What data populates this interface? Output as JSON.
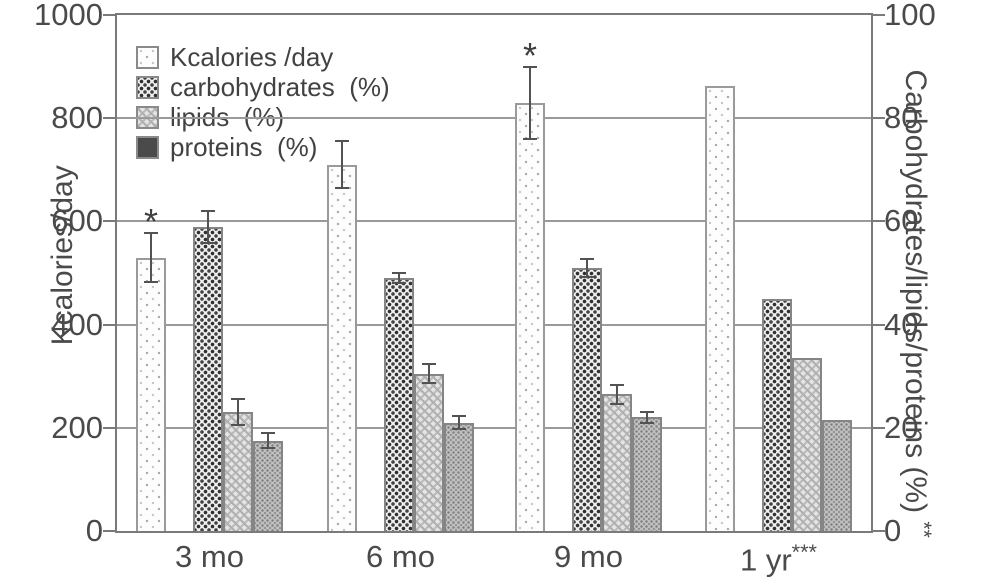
{
  "chart_data": {
    "type": "bar",
    "title": "",
    "categories": [
      "3 mo",
      "6 mo",
      "9 mo",
      "1 yr"
    ],
    "category_superscripts": [
      "",
      "",
      "",
      "***"
    ],
    "left_axis": {
      "label": "Kcalories/day",
      "ticks": [
        0,
        200,
        400,
        600,
        800,
        1000
      ],
      "range": [
        0,
        1000
      ]
    },
    "right_axis": {
      "label": "Carbohydrates/lipids/proteins (%) ",
      "suffix": "**",
      "ticks": [
        0,
        20,
        40,
        60,
        80,
        100
      ],
      "range": [
        0,
        100
      ]
    },
    "grid": "horizontal",
    "legend_position": "top-left-inside",
    "series": [
      {
        "name": "Kcalories /day",
        "axis": "left",
        "pattern": "kcal",
        "legend_swatch": "pattern",
        "values": [
          530,
          710,
          830,
          863
        ],
        "errors": [
          50,
          47,
          72,
          0
        ],
        "annotations": [
          "*",
          "",
          "*",
          ""
        ]
      },
      {
        "name": "carbohydrates  (%)",
        "axis": "right",
        "pattern": "carb",
        "legend_swatch": "pattern",
        "values": [
          59,
          49,
          51,
          45
        ],
        "errors": [
          3.3,
          1.2,
          2,
          0
        ],
        "annotations": [
          "",
          "",
          "",
          ""
        ]
      },
      {
        "name": "lipids  (%)",
        "axis": "right",
        "pattern": "lipids",
        "legend_swatch": "pattern",
        "values": [
          23,
          30.5,
          26.5,
          33.5
        ],
        "errors": [
          2.7,
          2,
          2,
          0
        ],
        "annotations": [
          "",
          "",
          "",
          ""
        ]
      },
      {
        "name": "proteins  (%)",
        "axis": "right",
        "pattern": "proteins",
        "legend_swatch": "solid-dark",
        "values": [
          17.5,
          21,
          22,
          21.5
        ],
        "errors": [
          1.7,
          1.5,
          1.2,
          0
        ],
        "annotations": [
          "",
          "",
          "",
          ""
        ]
      }
    ]
  }
}
